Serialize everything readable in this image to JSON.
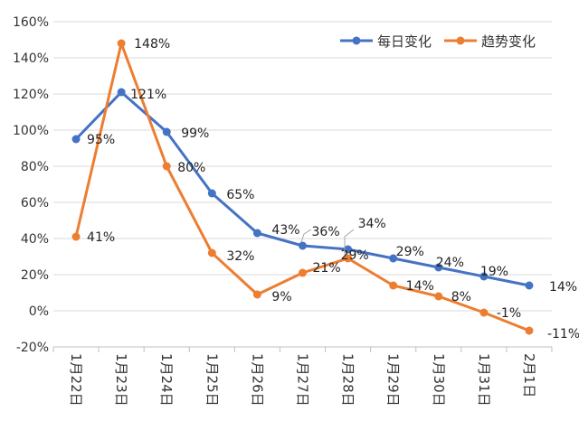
{
  "chart_data": {
    "type": "line",
    "categories": [
      "1月22日",
      "1月23日",
      "1月24日",
      "1月25日",
      "1月26日",
      "1月27日",
      "1月28日",
      "1月29日",
      "1月30日",
      "1月31日",
      "2月1日"
    ],
    "ylim": [
      -20,
      160
    ],
    "ytick_labels": [
      "160%",
      "140%",
      "120%",
      "100%",
      "80%",
      "60%",
      "40%",
      "20%",
      "0%",
      "-20%"
    ],
    "ytick_values": [
      160,
      140,
      120,
      100,
      80,
      60,
      40,
      20,
      0,
      -20
    ],
    "grid": "horizontal",
    "legend_position": "top-right",
    "series": [
      {
        "name": "每日变化",
        "color": "#4472C4",
        "values": [
          95,
          121,
          99,
          65,
          43,
          36,
          34,
          29,
          24,
          19,
          14
        ],
        "labels": [
          "95%",
          "121%",
          "99%",
          "65%",
          "43%",
          "36%",
          "34%",
          "29%",
          "24%",
          "19%",
          "14%"
        ]
      },
      {
        "name": "趋势变化",
        "color": "#ED7D31",
        "values": [
          41,
          148,
          80,
          32,
          9,
          21,
          29,
          14,
          8,
          -1,
          -11
        ],
        "labels": [
          "41%",
          "148%",
          "80%",
          "32%",
          "9%",
          "21%",
          "29%",
          "14%",
          "8%",
          "-1%",
          "-11%"
        ]
      }
    ]
  }
}
